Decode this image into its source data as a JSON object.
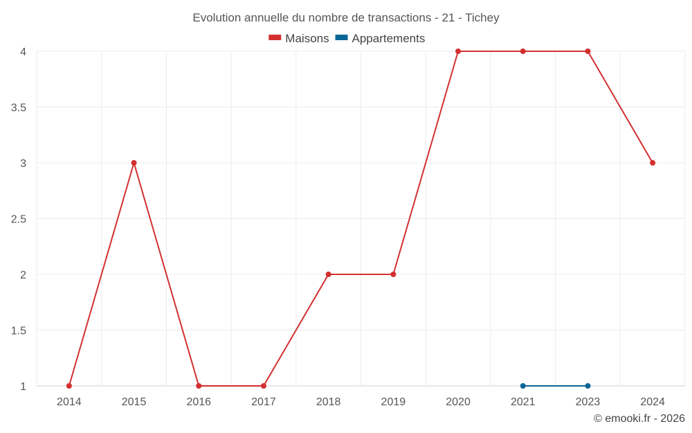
{
  "chart_data": {
    "type": "line",
    "title": "Evolution annuelle du nombre de transactions - 21 - Tichey",
    "categories": [
      "2014",
      "2015",
      "2016",
      "2017",
      "2018",
      "2019",
      "2020",
      "2021",
      "2023",
      "2024"
    ],
    "series": [
      {
        "name": "Maisons",
        "color": "#d32f2f",
        "values": [
          1,
          3,
          1,
          1,
          2,
          2,
          4,
          4,
          4,
          3
        ]
      },
      {
        "name": "Appartements",
        "color": "#0b6696",
        "values": [
          null,
          null,
          null,
          null,
          null,
          null,
          null,
          1,
          1,
          null
        ]
      }
    ],
    "yticks": [
      "1",
      "1.5",
      "2",
      "2.5",
      "3",
      "3.5",
      "4"
    ],
    "ylim": [
      1,
      4
    ],
    "grid": true,
    "legend_position": "top-center",
    "credit": "© emooki.fr - 2026"
  }
}
